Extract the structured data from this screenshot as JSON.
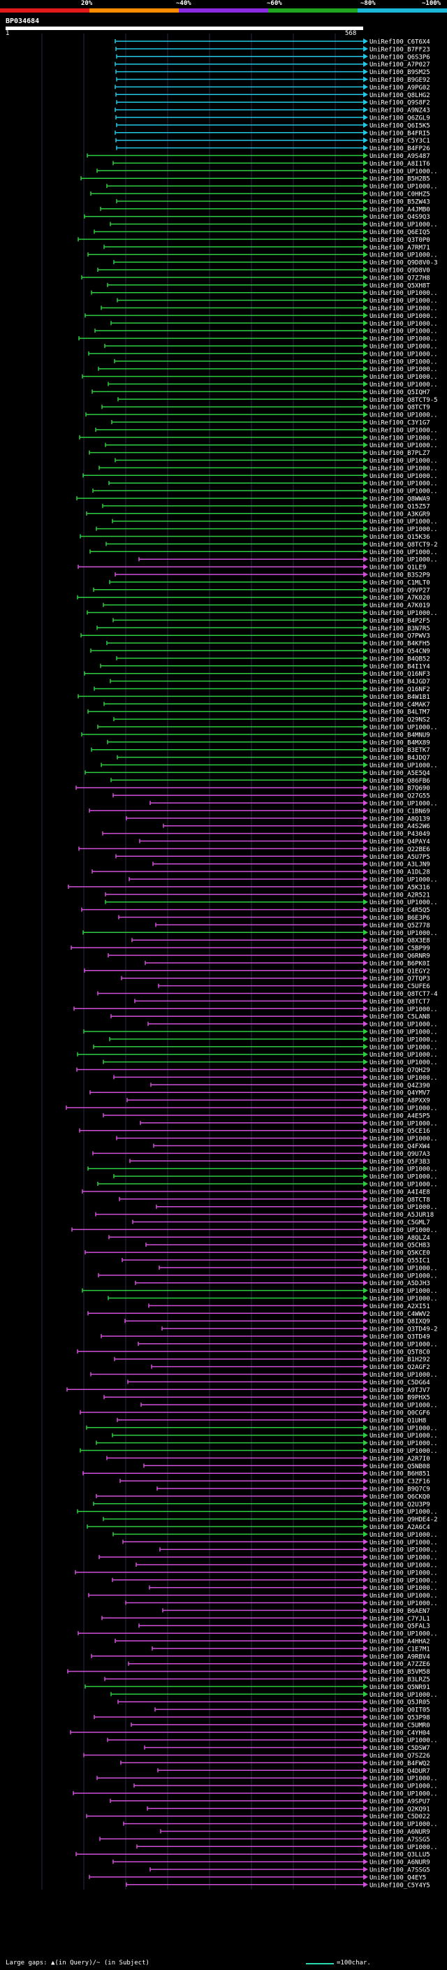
{
  "legend": {
    "labels": [
      "20%",
      "~40%",
      "~60%",
      "~80%",
      "~100%"
    ],
    "colors": [
      "#e31a1c",
      "#ff8c00",
      "#8a2be2",
      "#1fa51f",
      "#1ab7d8"
    ]
  },
  "query": {
    "id": "BP034684",
    "start": "1",
    "end": "568"
  },
  "footer": {
    "gaps_text": "Large gaps: ▲(in Query)/~ (in Subject)",
    "scale_text": "=100char."
  },
  "hit_colors": {
    "cyan": "#22c7e6",
    "green": "#2ecc40",
    "magenta": "#d04fd8"
  },
  "hits": [
    {
      "label": "UniRef100_C6T6X4",
      "color": "cyan"
    },
    {
      "label": "UniRef100_B7FF23",
      "color": "cyan"
    },
    {
      "label": "UniRef100_Q6S3P6",
      "color": "cyan"
    },
    {
      "label": "UniRef100_A7P027",
      "color": "cyan"
    },
    {
      "label": "UniRef100_B9SM25",
      "color": "cyan"
    },
    {
      "label": "UniRef100_B9GE92",
      "color": "cyan"
    },
    {
      "label": "UniRef100_A9PG02",
      "color": "cyan"
    },
    {
      "label": "UniRef100_Q8LHG2",
      "color": "cyan"
    },
    {
      "label": "UniRef100_Q9S8F2",
      "color": "cyan"
    },
    {
      "label": "UniRef100_A9NZ43",
      "color": "cyan"
    },
    {
      "label": "UniRef100_Q6ZGL9",
      "color": "cyan"
    },
    {
      "label": "UniRef100_Q6I5K5",
      "color": "cyan"
    },
    {
      "label": "UniRef100_B4FRI5",
      "color": "cyan"
    },
    {
      "label": "UniRef100_C5Y3C1",
      "color": "cyan"
    },
    {
      "label": "UniRef100_B4FP26",
      "color": "cyan"
    },
    {
      "label": "UniRef100_A9S487",
      "color": "green"
    },
    {
      "label": "UniRef100_A8I1T6",
      "color": "green"
    },
    {
      "label": "UniRef100_UP1000..",
      "color": "green"
    },
    {
      "label": "UniRef100_B5H2B5",
      "color": "green"
    },
    {
      "label": "UniRef100_UP1000..",
      "color": "green"
    },
    {
      "label": "UniRef100_C0HHZ5",
      "color": "green"
    },
    {
      "label": "UniRef100_B5ZW43",
      "color": "green"
    },
    {
      "label": "UniRef100_A4JMB0",
      "color": "green"
    },
    {
      "label": "UniRef100_Q4S9Q3",
      "color": "green"
    },
    {
      "label": "UniRef100_UP1000..",
      "color": "green"
    },
    {
      "label": "UniRef100_Q6EIQ5",
      "color": "green"
    },
    {
      "label": "UniRef100_Q3T0P0",
      "color": "green"
    },
    {
      "label": "UniRef100_A7RM71",
      "color": "green"
    },
    {
      "label": "UniRef100_UP1000..",
      "color": "green"
    },
    {
      "label": "UniRef100_Q9D8V0-3",
      "color": "green"
    },
    {
      "label": "UniRef100_Q9D8V0",
      "color": "green"
    },
    {
      "label": "UniRef100_Q7Z7H8",
      "color": "green"
    },
    {
      "label": "UniRef100_Q5XH8T",
      "color": "green"
    },
    {
      "label": "UniRef100_UP1000..",
      "color": "green"
    },
    {
      "label": "UniRef100_UP1000..",
      "color": "green"
    },
    {
      "label": "UniRef100_UP1000..",
      "color": "green"
    },
    {
      "label": "UniRef100_UP1000..",
      "color": "green"
    },
    {
      "label": "UniRef100_UP1000..",
      "color": "green"
    },
    {
      "label": "UniRef100_UP1000..",
      "color": "green"
    },
    {
      "label": "UniRef100_UP1000..",
      "color": "green"
    },
    {
      "label": "UniRef100_UP1000..",
      "color": "green"
    },
    {
      "label": "UniRef100_UP1000..",
      "color": "green"
    },
    {
      "label": "UniRef100_UP1000..",
      "color": "green"
    },
    {
      "label": "UniRef100_UP1000..",
      "color": "green"
    },
    {
      "label": "UniRef100_UP1000..",
      "color": "green"
    },
    {
      "label": "UniRef100_UP1000..",
      "color": "green"
    },
    {
      "label": "UniRef100_Q5IQH7",
      "color": "green"
    },
    {
      "label": "UniRef100_Q8TCT9-5",
      "color": "green"
    },
    {
      "label": "UniRef100_Q8TCT9",
      "color": "green"
    },
    {
      "label": "UniRef100_UP1000..",
      "color": "green"
    },
    {
      "label": "UniRef100_C3Y1G7",
      "color": "green"
    },
    {
      "label": "UniRef100_UP1000..",
      "color": "green"
    },
    {
      "label": "UniRef100_UP1000..",
      "color": "green"
    },
    {
      "label": "UniRef100_UP1000..",
      "color": "green"
    },
    {
      "label": "UniRef100_B7PLZ7",
      "color": "green"
    },
    {
      "label": "UniRef100_UP1000..",
      "color": "green"
    },
    {
      "label": "UniRef100_UP1000..",
      "color": "green"
    },
    {
      "label": "UniRef100_UP1000..",
      "color": "green"
    },
    {
      "label": "UniRef100_UP1000..",
      "color": "green"
    },
    {
      "label": "UniRef100_UP1000..",
      "color": "green"
    },
    {
      "label": "UniRef100_Q8WWA9",
      "color": "green"
    },
    {
      "label": "UniRef100_Q15Z57",
      "color": "green"
    },
    {
      "label": "UniRef100_A3KGR9",
      "color": "green"
    },
    {
      "label": "UniRef100_UP1000..",
      "color": "green"
    },
    {
      "label": "UniRef100_UP1000..",
      "color": "green"
    },
    {
      "label": "UniRef100_Q15K36",
      "color": "green"
    },
    {
      "label": "UniRef100_Q8TCT9-2",
      "color": "green"
    },
    {
      "label": "UniRef100_UP1000..",
      "color": "green"
    },
    {
      "label": "UniRef100_UP1000..",
      "color": "magenta"
    },
    {
      "label": "UniRef100_Q1LE9",
      "color": "magenta"
    },
    {
      "label": "UniRef100_B3S2P9",
      "color": "magenta"
    },
    {
      "label": "UniRef100_C1MLT0",
      "color": "green"
    },
    {
      "label": "UniRef100_Q9VP27",
      "color": "green"
    },
    {
      "label": "UniRef100_A7K020",
      "color": "green"
    },
    {
      "label": "UniRef100_A7K019",
      "color": "green"
    },
    {
      "label": "UniRef100_UP1000..",
      "color": "green"
    },
    {
      "label": "UniRef100_B4P2F5",
      "color": "green"
    },
    {
      "label": "UniRef100_B3N7R5",
      "color": "green"
    },
    {
      "label": "UniRef100_Q7PWV3",
      "color": "green"
    },
    {
      "label": "UniRef100_B4KFH5",
      "color": "green"
    },
    {
      "label": "UniRef100_Q54CN9",
      "color": "green"
    },
    {
      "label": "UniRef100_B4QB52",
      "color": "green"
    },
    {
      "label": "UniRef100_B4I1Y4",
      "color": "green"
    },
    {
      "label": "UniRef100_Q16NF3",
      "color": "green"
    },
    {
      "label": "UniRef100_B4JGD7",
      "color": "green"
    },
    {
      "label": "UniRef100_Q16NF2",
      "color": "green"
    },
    {
      "label": "UniRef100_B4W1B1",
      "color": "green"
    },
    {
      "label": "UniRef100_C4MAK7",
      "color": "green"
    },
    {
      "label": "UniRef100_B4LTM7",
      "color": "green"
    },
    {
      "label": "UniRef100_Q29NS2",
      "color": "green"
    },
    {
      "label": "UniRef100_UP1000..",
      "color": "green"
    },
    {
      "label": "UniRef100_B4MNU9",
      "color": "green"
    },
    {
      "label": "UniRef100_B4MX89",
      "color": "green"
    },
    {
      "label": "UniRef100_B3ETK7",
      "color": "green"
    },
    {
      "label": "UniRef100_B4JDQ7",
      "color": "green"
    },
    {
      "label": "UniRef100_UP1000..",
      "color": "green"
    },
    {
      "label": "UniRef100_A5E5Q4",
      "color": "green"
    },
    {
      "label": "UniRef100_Q86FB6",
      "color": "green"
    },
    {
      "label": "UniRef100_B7Q690",
      "color": "magenta"
    },
    {
      "label": "UniRef100_Q27G55",
      "color": "magenta"
    },
    {
      "label": "UniRef100_UP1000..",
      "color": "magenta"
    },
    {
      "label": "UniRef100_C1BN69",
      "color": "magenta"
    },
    {
      "label": "UniRef100_A8Q139",
      "color": "magenta"
    },
    {
      "label": "UniRef100_A4S2W6",
      "color": "magenta"
    },
    {
      "label": "UniRef100_P43049",
      "color": "magenta"
    },
    {
      "label": "UniRef100_Q4PAY4",
      "color": "magenta"
    },
    {
      "label": "UniRef100_Q22BE6",
      "color": "magenta"
    },
    {
      "label": "UniRef100_A5U7P5",
      "color": "magenta"
    },
    {
      "label": "UniRef100_A3LJN9",
      "color": "magenta"
    },
    {
      "label": "UniRef100_A1DL28",
      "color": "magenta"
    },
    {
      "label": "UniRef100_UP1000..",
      "color": "magenta"
    },
    {
      "label": "UniRef100_A5K316",
      "color": "magenta"
    },
    {
      "label": "UniRef100_A2R521",
      "color": "magenta"
    },
    {
      "label": "UniRef100_UP1000..",
      "color": "green"
    },
    {
      "label": "UniRef100_C4R5Q5",
      "color": "magenta"
    },
    {
      "label": "UniRef100_B6E3P6",
      "color": "magenta"
    },
    {
      "label": "UniRef100_Q5Z778",
      "color": "magenta"
    },
    {
      "label": "UniRef100_UP1000..",
      "color": "green"
    },
    {
      "label": "UniRef100_Q8X3E8",
      "color": "magenta"
    },
    {
      "label": "UniRef100_C5BP99",
      "color": "magenta"
    },
    {
      "label": "UniRef100_Q6RNR9",
      "color": "magenta"
    },
    {
      "label": "UniRef100_B6PK0I",
      "color": "magenta"
    },
    {
      "label": "UniRef100_Q1EGY2",
      "color": "magenta"
    },
    {
      "label": "UniRef100_Q7TQP3",
      "color": "magenta"
    },
    {
      "label": "UniRef100_C5UFE6",
      "color": "magenta"
    },
    {
      "label": "UniRef100_Q8TCT7-4",
      "color": "magenta"
    },
    {
      "label": "UniRef100_Q8TCT7",
      "color": "magenta"
    },
    {
      "label": "UniRef100_UP1000..",
      "color": "magenta"
    },
    {
      "label": "UniRef100_C5LAN8",
      "color": "magenta"
    },
    {
      "label": "UniRef100_UP1000..",
      "color": "magenta"
    },
    {
      "label": "UniRef100_UP1000..",
      "color": "green"
    },
    {
      "label": "UniRef100_UP1000..",
      "color": "green"
    },
    {
      "label": "UniRef100_UP1000..",
      "color": "green"
    },
    {
      "label": "UniRef100_UP1000..",
      "color": "green"
    },
    {
      "label": "UniRef100_UP1000..",
      "color": "green"
    },
    {
      "label": "UniRef100_Q7QH29",
      "color": "magenta"
    },
    {
      "label": "UniRef100_UP1000..",
      "color": "magenta"
    },
    {
      "label": "UniRef100_Q4Z390",
      "color": "magenta"
    },
    {
      "label": "UniRef100_Q4YMV7",
      "color": "magenta"
    },
    {
      "label": "UniRef100_A8PXX9",
      "color": "magenta"
    },
    {
      "label": "UniRef100_UP1000..",
      "color": "magenta"
    },
    {
      "label": "UniRef100_A4E5P5",
      "color": "magenta"
    },
    {
      "label": "UniRef100_UP1000..",
      "color": "magenta"
    },
    {
      "label": "UniRef100_Q5CE16",
      "color": "magenta"
    },
    {
      "label": "UniRef100_UP1000..",
      "color": "magenta"
    },
    {
      "label": "UniRef100_Q4FXW4",
      "color": "magenta"
    },
    {
      "label": "UniRef100_Q9U7A3",
      "color": "magenta"
    },
    {
      "label": "UniRef100_Q5F3B3",
      "color": "magenta"
    },
    {
      "label": "UniRef100_UP1000..",
      "color": "green"
    },
    {
      "label": "UniRef100_UP1000..",
      "color": "green"
    },
    {
      "label": "UniRef100_UP1000..",
      "color": "green"
    },
    {
      "label": "UniRef100_A4I4E8",
      "color": "magenta"
    },
    {
      "label": "UniRef100_Q8TCT8",
      "color": "magenta"
    },
    {
      "label": "UniRef100_UP1000..",
      "color": "magenta"
    },
    {
      "label": "UniRef100_A5JUR18",
      "color": "magenta"
    },
    {
      "label": "UniRef100_C5GML7",
      "color": "magenta"
    },
    {
      "label": "UniRef100_UP1000..",
      "color": "magenta"
    },
    {
      "label": "UniRef100_A8QLZ4",
      "color": "magenta"
    },
    {
      "label": "UniRef100_Q5CH83",
      "color": "magenta"
    },
    {
      "label": "UniRef100_Q5KCE0",
      "color": "magenta"
    },
    {
      "label": "UniRef100_Q55IC1",
      "color": "magenta"
    },
    {
      "label": "UniRef100_UP1000..",
      "color": "magenta"
    },
    {
      "label": "UniRef100_UP1000..",
      "color": "magenta"
    },
    {
      "label": "UniRef100_A5DJH3",
      "color": "magenta"
    },
    {
      "label": "UniRef100_UP1000..",
      "color": "green"
    },
    {
      "label": "UniRef100_UP1000..",
      "color": "green"
    },
    {
      "label": "UniRef100_A2XI51",
      "color": "magenta"
    },
    {
      "label": "UniRef100_C4WWV2",
      "color": "magenta"
    },
    {
      "label": "UniRef100_Q8IXQ9",
      "color": "magenta"
    },
    {
      "label": "UniRef100_Q3TD49-2",
      "color": "magenta"
    },
    {
      "label": "UniRef100_Q3TD49",
      "color": "magenta"
    },
    {
      "label": "UniRef100_UP1000..",
      "color": "magenta"
    },
    {
      "label": "UniRef100_Q5T8C0",
      "color": "magenta"
    },
    {
      "label": "UniRef100_B1H292",
      "color": "magenta"
    },
    {
      "label": "UniRef100_Q2AGF2",
      "color": "magenta"
    },
    {
      "label": "UniRef100_UP1000..",
      "color": "magenta"
    },
    {
      "label": "UniRef100_C5DG64",
      "color": "magenta"
    },
    {
      "label": "UniRef100_A9TJV7",
      "color": "magenta"
    },
    {
      "label": "UniRef100_B9PHX5",
      "color": "magenta"
    },
    {
      "label": "UniRef100_UP1000..",
      "color": "magenta"
    },
    {
      "label": "UniRef100_Q0CGF6",
      "color": "magenta"
    },
    {
      "label": "UniRef100_Q1UH8",
      "color": "magenta"
    },
    {
      "label": "UniRef100_UP1000..",
      "color": "green"
    },
    {
      "label": "UniRef100_UP1000..",
      "color": "green"
    },
    {
      "label": "UniRef100_UP1000..",
      "color": "green"
    },
    {
      "label": "UniRef100_UP1000..",
      "color": "green"
    },
    {
      "label": "UniRef100_A2R7I0",
      "color": "magenta"
    },
    {
      "label": "UniRef100_Q5NB08",
      "color": "magenta"
    },
    {
      "label": "UniRef100_B6H851",
      "color": "magenta"
    },
    {
      "label": "UniRef100_C3ZF16",
      "color": "magenta"
    },
    {
      "label": "UniRef100_B9Q7C9",
      "color": "magenta"
    },
    {
      "label": "UniRef100_Q6CKQ0",
      "color": "magenta"
    },
    {
      "label": "UniRef100_Q2U3P9",
      "color": "green"
    },
    {
      "label": "UniRef100_UP1000..",
      "color": "green"
    },
    {
      "label": "UniRef100_Q9HDE4-2",
      "color": "green"
    },
    {
      "label": "UniRef100_A2A6C4",
      "color": "green"
    },
    {
      "label": "UniRef100_UP1000..",
      "color": "green"
    },
    {
      "label": "UniRef100_UP1000..",
      "color": "magenta"
    },
    {
      "label": "UniRef100_UP1000..",
      "color": "magenta"
    },
    {
      "label": "UniRef100_UP1000..",
      "color": "magenta"
    },
    {
      "label": "UniRef100_UP1000..",
      "color": "magenta"
    },
    {
      "label": "UniRef100_UP1000..",
      "color": "magenta"
    },
    {
      "label": "UniRef100_UP1000..",
      "color": "magenta"
    },
    {
      "label": "UniRef100_UP1000..",
      "color": "magenta"
    },
    {
      "label": "UniRef100_UP1000..",
      "color": "magenta"
    },
    {
      "label": "UniRef100_UP1000..",
      "color": "magenta"
    },
    {
      "label": "UniRef100_B6AEN7",
      "color": "magenta"
    },
    {
      "label": "UniRef100_C7YJL1",
      "color": "magenta"
    },
    {
      "label": "UniRef100_Q5FAL3",
      "color": "magenta"
    },
    {
      "label": "UniRef100_UP1000..",
      "color": "magenta"
    },
    {
      "label": "UniRef100_A4HHA2",
      "color": "magenta"
    },
    {
      "label": "UniRef100_C1E7M1",
      "color": "magenta"
    },
    {
      "label": "UniRef100_A9RBV4",
      "color": "magenta"
    },
    {
      "label": "UniRef100_A7ZZE6",
      "color": "magenta"
    },
    {
      "label": "UniRef100_B5VM58",
      "color": "magenta"
    },
    {
      "label": "UniRef100_B3LRZ5",
      "color": "magenta"
    },
    {
      "label": "UniRef100_Q5NR91",
      "color": "green"
    },
    {
      "label": "UniRef100_UP1000..",
      "color": "green"
    },
    {
      "label": "UniRef100_Q5JR05",
      "color": "magenta"
    },
    {
      "label": "UniRef100_Q0IT05",
      "color": "magenta"
    },
    {
      "label": "UniRef100_Q53P98",
      "color": "magenta"
    },
    {
      "label": "UniRef100_C5UMR0",
      "color": "magenta"
    },
    {
      "label": "UniRef100_C4YH04",
      "color": "magenta"
    },
    {
      "label": "UniRef100_UP1000..",
      "color": "magenta"
    },
    {
      "label": "UniRef100_C5DSW7",
      "color": "magenta"
    },
    {
      "label": "UniRef100_Q7SZ26",
      "color": "magenta"
    },
    {
      "label": "UniRef100_B4FWQ2",
      "color": "magenta"
    },
    {
      "label": "UniRef100_Q4DUR7",
      "color": "magenta"
    },
    {
      "label": "UniRef100_UP1000..",
      "color": "magenta"
    },
    {
      "label": "UniRef100_UP1000..",
      "color": "magenta"
    },
    {
      "label": "UniRef100_UP1000..",
      "color": "magenta"
    },
    {
      "label": "UniRef100_A9SPU7",
      "color": "magenta"
    },
    {
      "label": "UniRef100_Q2KQ91",
      "color": "magenta"
    },
    {
      "label": "UniRef100_C5D022",
      "color": "magenta"
    },
    {
      "label": "UniRef100_UP1000..",
      "color": "magenta"
    },
    {
      "label": "UniRef100_A6NUR9",
      "color": "magenta"
    },
    {
      "label": "UniRef100_A7SSG5",
      "color": "magenta"
    },
    {
      "label": "UniRef100_UP1000..",
      "color": "magenta"
    },
    {
      "label": "UniRef100_Q3LLU5",
      "color": "magenta"
    },
    {
      "label": "UniRef100_A6NUR9",
      "color": "magenta"
    },
    {
      "label": "UniRef100_A7SSG5",
      "color": "magenta"
    },
    {
      "label": "UniRef100_Q4EY5",
      "color": "magenta"
    },
    {
      "label": "UniRef100_C5Y4Y5",
      "color": "magenta"
    }
  ]
}
